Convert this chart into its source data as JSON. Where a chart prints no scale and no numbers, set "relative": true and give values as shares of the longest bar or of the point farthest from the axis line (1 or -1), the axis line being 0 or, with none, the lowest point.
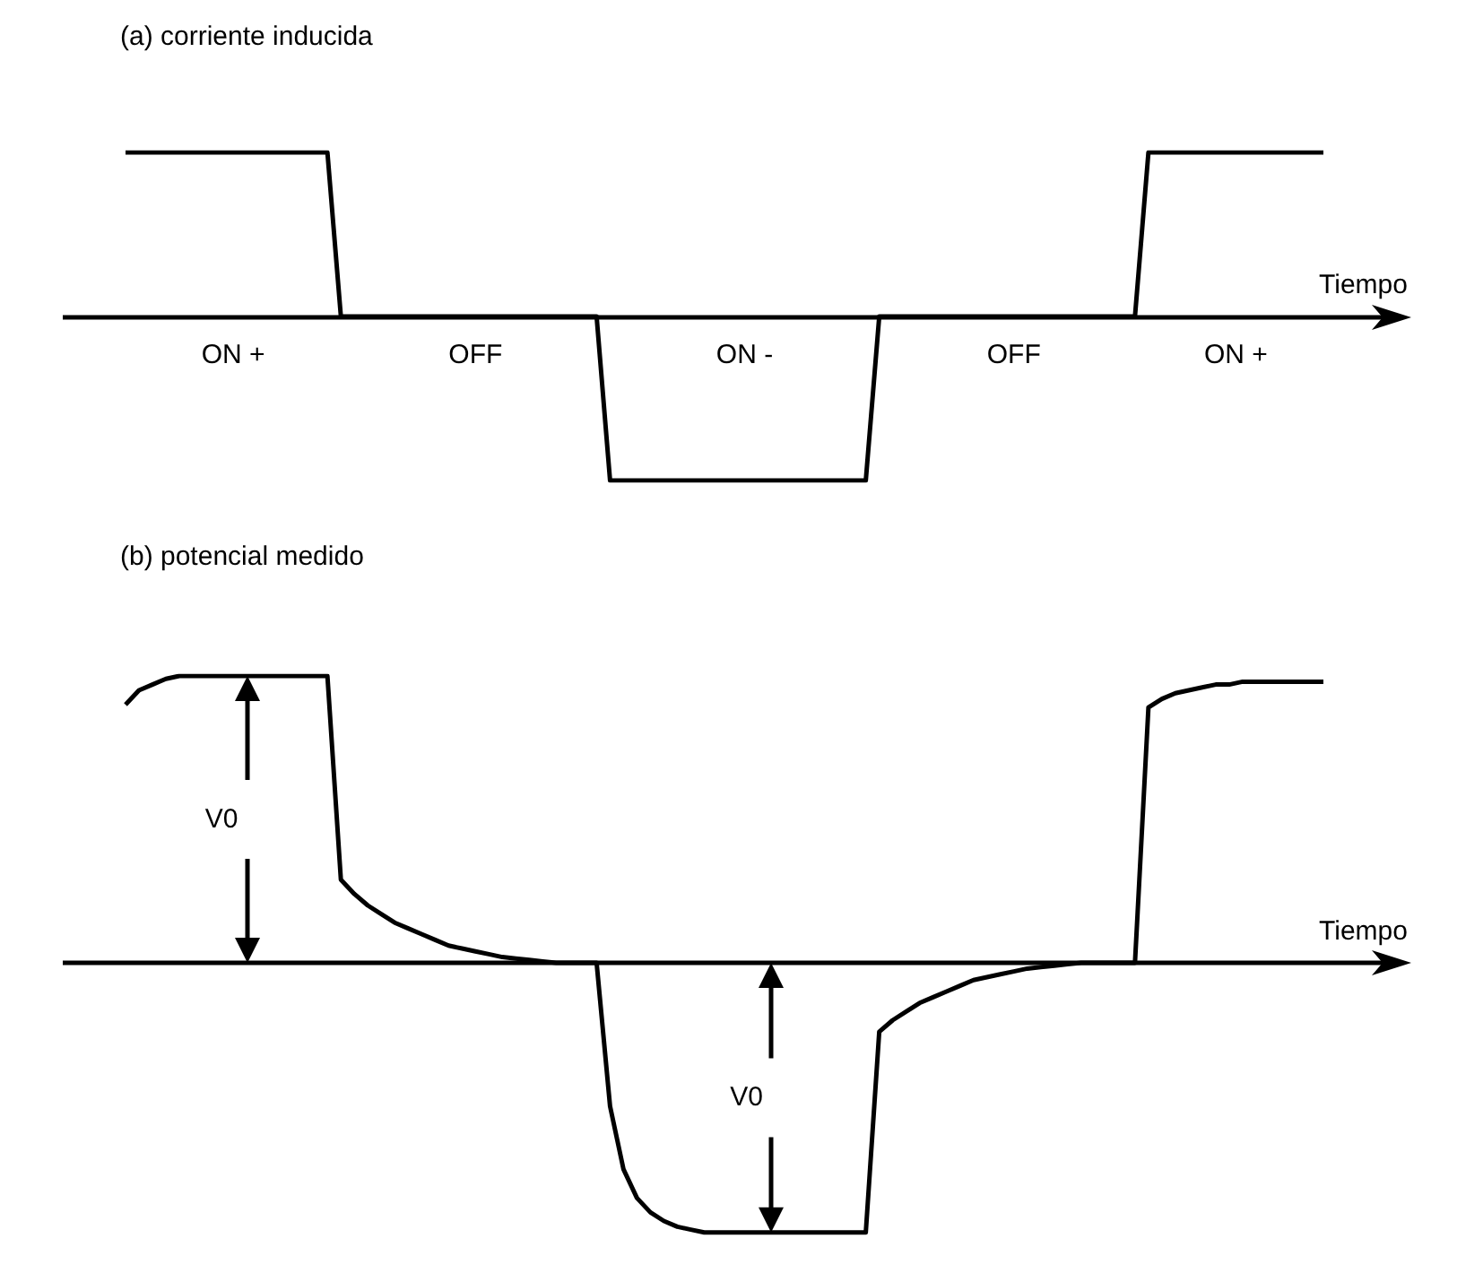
{
  "chart_data": [
    {
      "type": "line",
      "title": "(a) corriente inducida",
      "xlabel": "Tiempo",
      "relative": true,
      "categories": [
        null,
        null,
        null,
        null,
        null,
        null,
        null,
        null,
        null,
        null,
        null,
        null,
        null,
        null,
        null,
        null,
        null,
        null,
        null,
        null,
        null,
        null,
        null,
        null,
        null,
        null,
        null,
        null,
        null,
        null,
        null,
        null,
        null,
        null,
        null,
        null,
        null,
        null,
        null,
        null,
        null,
        null,
        null,
        null,
        null,
        null,
        null,
        null,
        null,
        null,
        null,
        null,
        null,
        null,
        null,
        null,
        null,
        null,
        null,
        null,
        null,
        null,
        null,
        null,
        null,
        null,
        null,
        null,
        null,
        null,
        null,
        null,
        null,
        null,
        null,
        null,
        null,
        null,
        null,
        null,
        null,
        null,
        null,
        null,
        null,
        null,
        null,
        null,
        null,
        null
      ],
      "series": [
        {
          "color": "#000000",
          "values": [
            1,
            1,
            1,
            1,
            1,
            1,
            1,
            1,
            1,
            1,
            1,
            1,
            1,
            1,
            1,
            1,
            0,
            0,
            0,
            0,
            0,
            0,
            0,
            0,
            0,
            0,
            0,
            0,
            0,
            0,
            0,
            0,
            0,
            0,
            0,
            0,
            -1,
            -1,
            -1,
            -1,
            -1,
            -1,
            -1,
            -1,
            -1,
            -1,
            -1,
            -1,
            -1,
            -1,
            -1,
            -1,
            -1,
            -1,
            -1,
            -1,
            0,
            0,
            0,
            0,
            0,
            0,
            0,
            0,
            0,
            0,
            0,
            0,
            0,
            0,
            0,
            0,
            0,
            0,
            0,
            0,
            1,
            1,
            1,
            1,
            1,
            1,
            1,
            1,
            1,
            1,
            1,
            1,
            1,
            1
          ]
        }
      ],
      "annotations": [
        "ON +",
        "OFF",
        "ON -",
        "OFF",
        "ON +"
      ]
    },
    {
      "type": "line",
      "title": "(b) potencial medido",
      "xlabel": "Tiempo",
      "relative": true,
      "categories": [
        null,
        null,
        null,
        null,
        null,
        null,
        null,
        null,
        null,
        null,
        null,
        null,
        null,
        null,
        null,
        null,
        null,
        null,
        null,
        null,
        null,
        null,
        null,
        null,
        null,
        null,
        null,
        null,
        null,
        null,
        null,
        null,
        null,
        null,
        null,
        null,
        null,
        null,
        null,
        null,
        null,
        null,
        null,
        null,
        null,
        null,
        null,
        null,
        null,
        null,
        null,
        null,
        null,
        null,
        null,
        null,
        null,
        null,
        null,
        null,
        null,
        null,
        null,
        null,
        null,
        null,
        null,
        null,
        null,
        null,
        null,
        null,
        null,
        null,
        null,
        null,
        null,
        null,
        null,
        null,
        null,
        null,
        null,
        null,
        null,
        null,
        null,
        null,
        null,
        null
      ],
      "series": [
        {
          "color": "#000000",
          "values": [
            0.9,
            0.95,
            0.97,
            0.99,
            1,
            1,
            1,
            1,
            1,
            1,
            1,
            1,
            1,
            1,
            1,
            1,
            0.29,
            0.24,
            0.2,
            0.17,
            0.14,
            0.12,
            0.1,
            0.08,
            0.06,
            0.05,
            0.04,
            0.03,
            0.02,
            0.015,
            0.01,
            0.005,
            0,
            0,
            0,
            0,
            -0.5,
            -0.72,
            -0.82,
            -0.87,
            -0.9,
            -0.92,
            -0.93,
            -0.94,
            -0.94,
            -0.94,
            -0.94,
            -0.94,
            -0.94,
            -0.94,
            -0.94,
            -0.94,
            -0.94,
            -0.94,
            -0.94,
            -0.94,
            -0.24,
            -0.2,
            -0.17,
            -0.14,
            -0.12,
            -0.1,
            -0.08,
            -0.06,
            -0.05,
            -0.04,
            -0.03,
            -0.02,
            -0.015,
            -0.01,
            -0.005,
            0,
            0,
            0,
            0,
            0,
            0.89,
            0.92,
            0.94,
            0.95,
            0.96,
            0.97,
            0.97,
            0.98,
            0.98,
            0.98,
            0.98,
            0.98,
            0.98,
            0.98
          ]
        }
      ],
      "annotations": [
        "V0",
        "V0"
      ]
    }
  ]
}
